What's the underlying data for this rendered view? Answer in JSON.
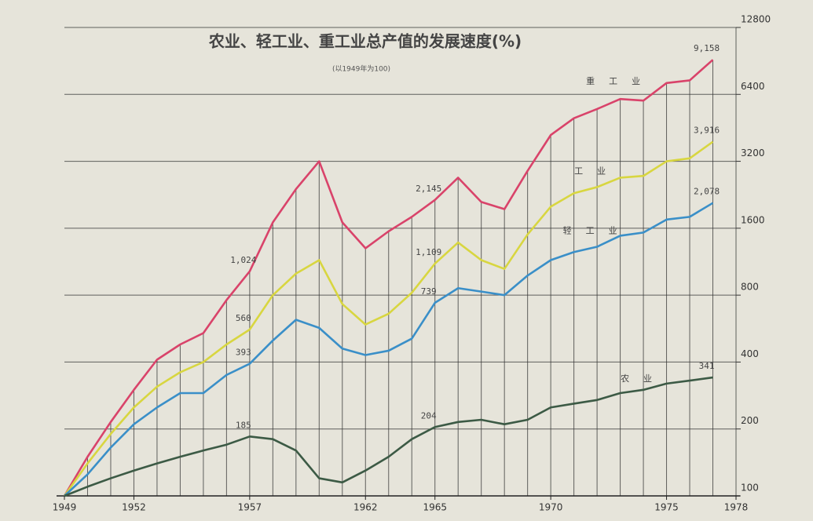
{
  "chart_data": {
    "type": "line",
    "title": "农业、轻工业、重工业总产值的发展速度(%)",
    "subtitle": "(以1949年为100)",
    "x": [
      1949,
      1950,
      1951,
      1952,
      1953,
      1954,
      1955,
      1956,
      1957,
      1958,
      1959,
      1960,
      1961,
      1962,
      1963,
      1964,
      1965,
      1966,
      1967,
      1968,
      1969,
      1970,
      1971,
      1972,
      1973,
      1974,
      1975,
      1976,
      1977
    ],
    "xlim": [
      1949,
      1978
    ],
    "xticks": [
      1949,
      1952,
      1957,
      1962,
      1965,
      1970,
      1975,
      1978
    ],
    "ylim": [
      100,
      12800
    ],
    "yticks": [
      100,
      200,
      400,
      800,
      1600,
      3200,
      6400,
      12800
    ],
    "log_scale": true,
    "grid": true,
    "series": [
      {
        "name": "重工业",
        "color": "#d9436a",
        "values": [
          100,
          150,
          215,
          300,
          410,
          480,
          540,
          760,
          1024,
          1700,
          2400,
          3200,
          1700,
          1300,
          1550,
          1800,
          2145,
          2700,
          2100,
          1950,
          2900,
          4200,
          5000,
          5500,
          6100,
          6000,
          7200,
          7400,
          9158
        ],
        "value_labels": {
          "8": "1,024",
          "16": "2,145",
          "28": "9,158"
        }
      },
      {
        "name": "工业",
        "color": "#d8d640",
        "values": [
          100,
          140,
          190,
          250,
          310,
          360,
          400,
          480,
          560,
          800,
          1000,
          1150,
          730,
          590,
          660,
          820,
          1109,
          1380,
          1150,
          1050,
          1500,
          2000,
          2300,
          2450,
          2700,
          2750,
          3200,
          3300,
          3916
        ],
        "value_labels": {
          "8": "560",
          "16": "1,109",
          "28": "3,916"
        }
      },
      {
        "name": "轻工业",
        "color": "#3a8fc8",
        "values": [
          100,
          125,
          165,
          210,
          250,
          290,
          290,
          350,
          393,
          500,
          620,
          570,
          460,
          430,
          450,
          510,
          739,
          860,
          830,
          800,
          980,
          1150,
          1250,
          1320,
          1480,
          1530,
          1750,
          1800,
          2078
        ],
        "value_labels": {
          "8": "393",
          "16": "739",
          "28": "2,078"
        }
      },
      {
        "name": "农业",
        "color": "#3c5a45",
        "values": [
          100,
          110,
          120,
          130,
          140,
          150,
          160,
          170,
          185,
          180,
          160,
          120,
          115,
          130,
          150,
          180,
          204,
          215,
          220,
          210,
          220,
          250,
          260,
          270,
          290,
          300,
          320,
          330,
          341
        ],
        "value_labels": {
          "8": "185",
          "16": "204",
          "28": "341"
        }
      }
    ]
  }
}
